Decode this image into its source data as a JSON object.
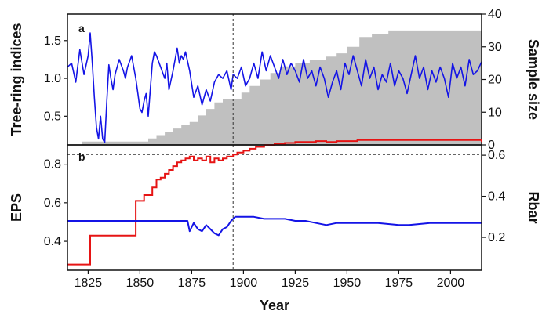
{
  "chart_data": [
    {
      "panel": "a",
      "type": "line",
      "ylabel": "Tree-ring indices",
      "y2label": "Sample size",
      "xlim": [
        1815,
        2015
      ],
      "ylim": [
        0.12,
        1.85
      ],
      "y2lim": [
        0,
        40
      ],
      "yticks": [
        0.5,
        1.0,
        1.5
      ],
      "yticklabels": [
        "0.5",
        "1.0",
        "1.5"
      ],
      "y2ticks": [
        0,
        10,
        20,
        30,
        40
      ],
      "y2ticklabels": [
        "0",
        "10",
        "20",
        "30",
        "40"
      ],
      "grid": false,
      "reference_line_x": 1895,
      "colors": {
        "index": "#1414e6",
        "sample": "#c0c0c0"
      },
      "series": [
        {
          "role": "index",
          "style": "line",
          "axis": "left",
          "x": [
            1815,
            1817,
            1819,
            1821,
            1823,
            1825,
            1826,
            1827,
            1828,
            1829,
            1830,
            1831,
            1832,
            1833,
            1834,
            1835,
            1836,
            1837,
            1838,
            1840,
            1842,
            1843,
            1844,
            1846,
            1848,
            1849,
            1850,
            1851,
            1852,
            1853,
            1854,
            1855,
            1856,
            1857,
            1858,
            1860,
            1862,
            1863,
            1864,
            1866,
            1868,
            1869,
            1870,
            1871,
            1872,
            1874,
            1876,
            1878,
            1880,
            1882,
            1884,
            1886,
            1888,
            1890,
            1892,
            1894,
            1895,
            1897,
            1899,
            1901,
            1903,
            1905,
            1907,
            1909,
            1911,
            1913,
            1915,
            1917,
            1919,
            1921,
            1923,
            1925,
            1927,
            1929,
            1931,
            1933,
            1935,
            1937,
            1939,
            1941,
            1943,
            1945,
            1947,
            1949,
            1951,
            1953,
            1955,
            1957,
            1959,
            1961,
            1963,
            1965,
            1967,
            1969,
            1971,
            1973,
            1975,
            1977,
            1979,
            1981,
            1983,
            1985,
            1987,
            1989,
            1991,
            1993,
            1995,
            1997,
            1999,
            2001,
            2003,
            2005,
            2007,
            2009,
            2011,
            2013,
            2015
          ],
          "y": [
            1.15,
            1.2,
            0.95,
            1.38,
            1.05,
            1.3,
            1.6,
            1.2,
            0.75,
            0.35,
            0.2,
            0.5,
            0.2,
            0.15,
            0.7,
            1.18,
            1.0,
            0.85,
            1.05,
            1.25,
            1.1,
            1.0,
            1.15,
            1.3,
            1.0,
            0.8,
            0.6,
            0.55,
            0.7,
            0.8,
            0.5,
            0.85,
            1.2,
            1.35,
            1.3,
            1.15,
            1.0,
            1.2,
            0.85,
            1.1,
            1.4,
            1.2,
            1.3,
            1.25,
            1.35,
            1.1,
            0.75,
            0.9,
            0.65,
            0.85,
            0.7,
            0.95,
            1.05,
            1.0,
            1.1,
            0.85,
            1.05,
            1.0,
            1.15,
            0.9,
            1.0,
            1.2,
            1.0,
            1.35,
            1.1,
            1.3,
            1.15,
            1.0,
            1.25,
            1.05,
            1.2,
            1.1,
            0.95,
            1.25,
            1.0,
            1.1,
            0.9,
            1.15,
            1.0,
            0.75,
            0.95,
            1.1,
            0.85,
            1.2,
            1.05,
            1.3,
            1.1,
            0.9,
            1.25,
            1.0,
            1.15,
            0.85,
            1.05,
            0.95,
            1.2,
            0.9,
            1.1,
            1.0,
            0.8,
            1.05,
            1.3,
            1.0,
            1.15,
            0.85,
            1.1,
            0.95,
            1.15,
            1.0,
            0.75,
            1.2,
            1.0,
            1.15,
            0.9,
            1.25,
            1.05,
            1.1,
            1.22
          ]
        },
        {
          "role": "sample",
          "style": "area",
          "axis": "right",
          "x": [
            1815,
            1822,
            1830,
            1837,
            1844,
            1850,
            1854,
            1858,
            1862,
            1866,
            1870,
            1874,
            1878,
            1882,
            1886,
            1890,
            1895,
            1899,
            1903,
            1908,
            1913,
            1918,
            1925,
            1932,
            1940,
            1945,
            1950,
            1956,
            1962,
            1970,
            1980,
            1990,
            2000,
            2012,
            2015
          ],
          "y": [
            0,
            1,
            1,
            1,
            1,
            1,
            2,
            3,
            4,
            5,
            6,
            7,
            9,
            11,
            13,
            14,
            14,
            16,
            18,
            20,
            22,
            24,
            25,
            26,
            27,
            28,
            30,
            33,
            34,
            35,
            35,
            35,
            35,
            35,
            35
          ]
        }
      ]
    },
    {
      "panel": "b",
      "type": "line",
      "xlabel": "Year",
      "ylabel": "EPS",
      "y2label": "Rbar",
      "xlim": [
        1815,
        2015
      ],
      "ylim": [
        0.25,
        0.9
      ],
      "y2lim": [
        0.04,
        0.65
      ],
      "xticks": [
        1825,
        1850,
        1875,
        1900,
        1925,
        1950,
        1975,
        2000
      ],
      "xticklabels": [
        "1825",
        "1850",
        "1875",
        "1900",
        "1925",
        "1950",
        "1975",
        "2000"
      ],
      "yticks": [
        0.4,
        0.6,
        0.8
      ],
      "yticklabels": [
        "0.4",
        "0.6",
        "0.8"
      ],
      "y2ticks": [
        0.2,
        0.4,
        0.6
      ],
      "y2ticklabels": [
        "0.2",
        "0.4",
        "0.6"
      ],
      "grid": false,
      "reference_line_x": 1895,
      "threshold_eps": 0.85,
      "colors": {
        "eps": "#e61414",
        "rbar": "#1414e6"
      },
      "series": [
        {
          "role": "eps",
          "axis": "left",
          "step": true,
          "x": [
            1815,
            1826,
            1848,
            1852,
            1856,
            1858,
            1860,
            1862,
            1864,
            1866,
            1868,
            1870,
            1872,
            1874,
            1876,
            1878,
            1880,
            1882,
            1884,
            1886,
            1888,
            1890,
            1892,
            1895,
            1897,
            1900,
            1903,
            1906,
            1910,
            1915,
            1920,
            1925,
            1930,
            1935,
            1940,
            1945,
            1950,
            1955,
            1960,
            1970,
            1980,
            1990,
            2000,
            2010,
            2013,
            2015
          ],
          "y": [
            0.28,
            0.43,
            0.61,
            0.64,
            0.68,
            0.72,
            0.73,
            0.75,
            0.77,
            0.79,
            0.81,
            0.82,
            0.83,
            0.84,
            0.82,
            0.83,
            0.82,
            0.84,
            0.81,
            0.83,
            0.82,
            0.83,
            0.84,
            0.85,
            0.86,
            0.87,
            0.88,
            0.89,
            0.9,
            0.905,
            0.91,
            0.915,
            0.915,
            0.92,
            0.915,
            0.92,
            0.92,
            0.925,
            0.925,
            0.925,
            0.925,
            0.925,
            0.925,
            0.925,
            0.925,
            0.915
          ]
        },
        {
          "role": "rbar",
          "axis": "right",
          "step": false,
          "x": [
            1815,
            1873,
            1874,
            1875,
            1876,
            1878,
            1880,
            1882,
            1884,
            1886,
            1888,
            1890,
            1892,
            1894,
            1896,
            1898,
            1900,
            1905,
            1910,
            1915,
            1920,
            1925,
            1930,
            1935,
            1940,
            1945,
            1950,
            1955,
            1960,
            1965,
            1970,
            1975,
            1980,
            1985,
            1990,
            1995,
            2000,
            2005,
            2010,
            2015
          ],
          "y": [
            0.28,
            0.28,
            0.23,
            0.25,
            0.27,
            0.24,
            0.23,
            0.26,
            0.24,
            0.22,
            0.21,
            0.24,
            0.25,
            0.28,
            0.3,
            0.3,
            0.3,
            0.3,
            0.29,
            0.29,
            0.29,
            0.28,
            0.28,
            0.27,
            0.26,
            0.27,
            0.27,
            0.27,
            0.27,
            0.27,
            0.265,
            0.26,
            0.26,
            0.265,
            0.27,
            0.27,
            0.27,
            0.27,
            0.27,
            0.27
          ]
        }
      ]
    }
  ]
}
